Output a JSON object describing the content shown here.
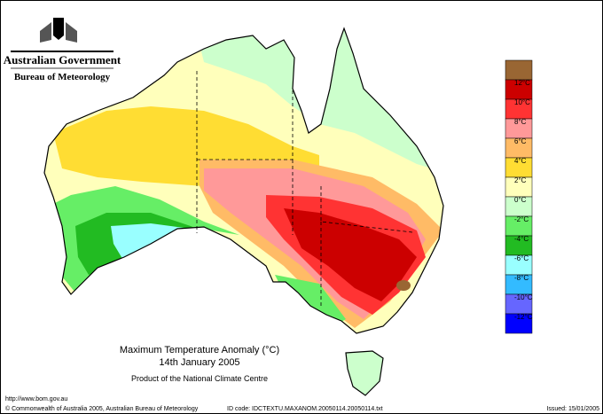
{
  "header": {
    "government": "Australian Government",
    "bureau": "Bureau of Meteorology"
  },
  "map": {
    "title": "Maximum Temperature Anomaly (°C)",
    "date": "14th January 2005",
    "product": "Product of the National Climate Centre"
  },
  "legend": {
    "colors": [
      "#996633",
      "#cc0000",
      "#ff3333",
      "#ff9999",
      "#ffbb66",
      "#ffdd33",
      "#ffffbb",
      "#ccffcc",
      "#66ee66",
      "#22bb22",
      "#99ffff",
      "#33bbff",
      "#6666ff",
      "#0000ff"
    ],
    "labels": [
      "12°C",
      "10°C",
      "8°C",
      "6°C",
      "4°C",
      "2°C",
      "0°C",
      "-2°C",
      "-4°C",
      "-6°C",
      "-8°C",
      "-10°C",
      "-12°C"
    ]
  },
  "footer": {
    "url": "http://www.bom.gov.au",
    "copyright": "© Commonwealth of Australia 2005, Australian Bureau of Meteorology",
    "id_code": "ID code: IDCTEXTU.MAXANOM.20050114.20050114.txt",
    "issued": "Issued: 15/01/2005"
  }
}
